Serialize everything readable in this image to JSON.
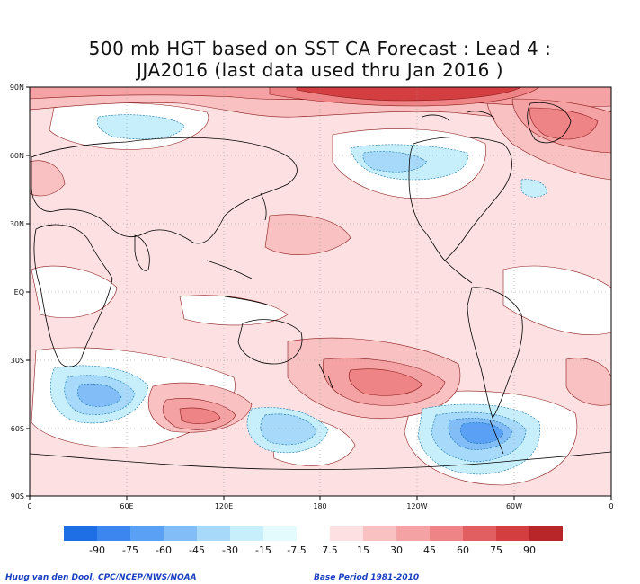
{
  "title": {
    "line1": "500 mb HGT based on SST CA Forecast : Lead 4 :",
    "line2": "JJA2016 (last data used thru Jan 2016 )"
  },
  "map": {
    "lat_labels": [
      "90N",
      "60N",
      "30N",
      "EQ",
      "30S",
      "60S",
      "90S"
    ],
    "lon_labels": [
      "0",
      "60E",
      "120E",
      "180",
      "120W",
      "60W",
      "0"
    ]
  },
  "colorbar": {
    "negative": [
      {
        "label": "-90",
        "color": "#1e6ee6"
      },
      {
        "label": "-75",
        "color": "#3c87ef"
      },
      {
        "label": "-60",
        "color": "#5aa0f5"
      },
      {
        "label": "-45",
        "color": "#82bdf8"
      },
      {
        "label": "-30",
        "color": "#a6d9fa"
      },
      {
        "label": "-15",
        "color": "#c6eefb"
      },
      {
        "label": "-7.5",
        "color": "#e4fbfd"
      }
    ],
    "gap_color": "#ffffff",
    "positive": [
      {
        "label": "7.5",
        "color": "#fde1e2"
      },
      {
        "label": "15",
        "color": "#f9c1c2"
      },
      {
        "label": "30",
        "color": "#f4a2a3"
      },
      {
        "label": "45",
        "color": "#ee8486"
      },
      {
        "label": "60",
        "color": "#e25f61"
      },
      {
        "label": "75",
        "color": "#d33f41"
      },
      {
        "label": "90",
        "color": "#b8262a"
      }
    ]
  },
  "credits": {
    "left": "Huug van den Dool, CPC/NCEP/NWS/NOAA",
    "right": "Base Period 1981-2010"
  }
}
